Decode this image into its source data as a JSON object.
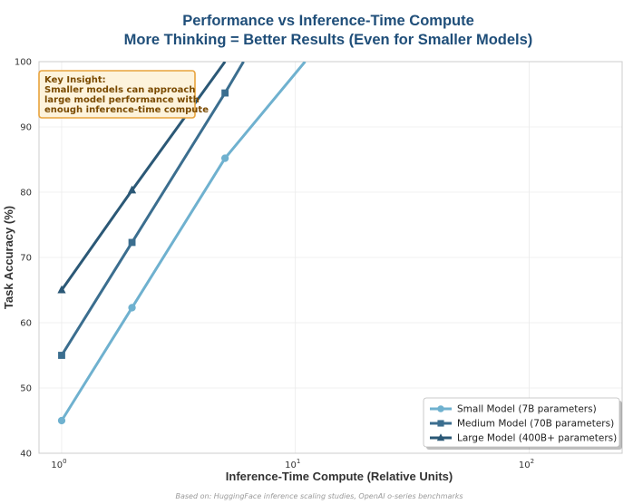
{
  "chart_data": {
    "type": "line",
    "title_line1": "Performance vs Inference-Time Compute",
    "title_line2": "More Thinking = Better Results (Even for Smaller Models)",
    "xlabel": "Inference-Time Compute (Relative Units)",
    "ylabel": "Task Accuracy (%)",
    "xscale": "log",
    "xlim": [
      0.8,
      250
    ],
    "ylim": [
      40,
      100
    ],
    "x_ticks": [
      {
        "value": 1,
        "base": "10",
        "exp": "0"
      },
      {
        "value": 10,
        "base": "10",
        "exp": "1"
      },
      {
        "value": 100,
        "base": "10",
        "exp": "2"
      }
    ],
    "y_ticks": [
      40,
      50,
      60,
      70,
      80,
      90,
      100
    ],
    "grid": true,
    "legend_position": "lower-right",
    "series": [
      {
        "name": "Small Model (7B parameters)",
        "marker": "circle",
        "color": "#6fb1cf",
        "x": [
          1,
          2,
          5,
          11
        ],
        "y": [
          45,
          62.3,
          85.2,
          100
        ]
      },
      {
        "name": "Medium Model (70B parameters)",
        "marker": "square",
        "color": "#3b6e8f",
        "x": [
          1,
          2,
          5,
          6
        ],
        "y": [
          55,
          72.3,
          95.2,
          100
        ]
      },
      {
        "name": "Large Model (400B+ parameters)",
        "marker": "triangle",
        "color": "#2b5876",
        "x": [
          1,
          2,
          5
        ],
        "y": [
          65,
          80.3,
          100
        ]
      }
    ],
    "marker_points": 3,
    "annotation": {
      "lines": [
        "Key Insight:",
        "Smaller models can approach",
        "large model performance with",
        "enough inference-time compute"
      ],
      "border_color": "#e8a33d",
      "fill_color": "#fdf3dc"
    },
    "caption": "Based on: HuggingFace inference scaling studies, OpenAI o-series benchmarks"
  }
}
